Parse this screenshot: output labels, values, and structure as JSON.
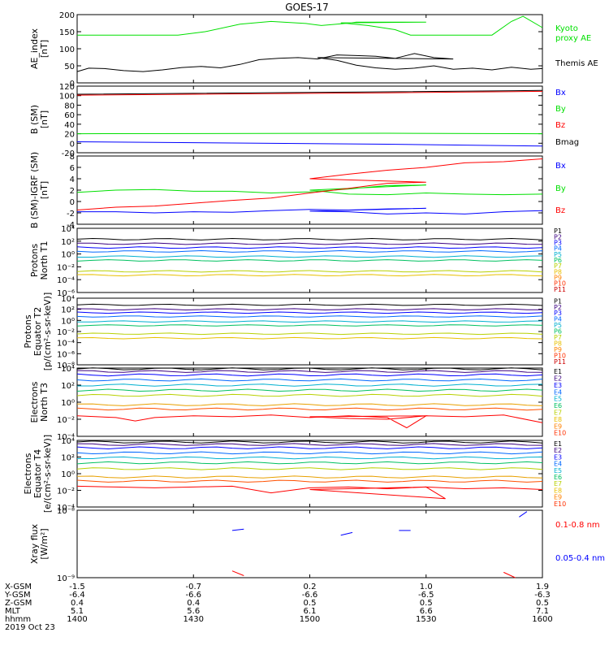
{
  "title": "GOES-17",
  "colors": {
    "green": "#00e000",
    "black": "#000000",
    "blue": "#0000ff",
    "red": "#ff0000",
    "axis": "#000000"
  },
  "chart_data": [
    {
      "type": "line",
      "panel": "ae",
      "ylabel": [
        "AE_index",
        "[nT]"
      ],
      "ylim": [
        0,
        200
      ],
      "yticks": [
        "0",
        "50",
        "100",
        "150",
        "200"
      ],
      "legend": [
        "Kyoto",
        "proxy AE",
        "Themis AE"
      ],
      "series": [
        {
          "name": "Kyoto proxy AE",
          "color": "#00e000",
          "x": [
            1400,
            1426,
            1433,
            1442,
            1450,
            1459,
            1463,
            1470,
            1472,
            1490,
            1508,
            1515,
            1522,
            1526,
            1538,
            1543,
            1547,
            1552,
            1555,
            1560
          ],
          "y": [
            140,
            140,
            150,
            172,
            180,
            174,
            168,
            175,
            178,
            178,
            176,
            168,
            156,
            140,
            140,
            140,
            140,
            180,
            195,
            162
          ]
        },
        {
          "name": "Themis AE",
          "color": "#000000",
          "x": [
            1400,
            1403,
            1407,
            1412,
            1417,
            1422,
            1427,
            1432,
            1437,
            1442,
            1447,
            1452,
            1457,
            1462,
            1467,
            1472,
            1477,
            1482,
            1487,
            1492,
            1497,
            1502,
            1507,
            1512,
            1517,
            1522,
            1527,
            1532,
            1537,
            1542,
            1547,
            1552,
            1557,
            1560
          ],
          "y": [
            33,
            43,
            42,
            36,
            33,
            38,
            45,
            48,
            44,
            54,
            68,
            72,
            74,
            70,
            82,
            80,
            78,
            72,
            86,
            74,
            70,
            74,
            66,
            52,
            44,
            40,
            43,
            50,
            40,
            43,
            38,
            46,
            40,
            42
          ]
        }
      ]
    },
    {
      "type": "line",
      "panel": "bsm",
      "ylabel": [
        "B (SM)",
        "[nT]"
      ],
      "ylim": [
        -20,
        120
      ],
      "yticks": [
        "-20",
        "0",
        "20",
        "40",
        "60",
        "80",
        "100",
        "120"
      ],
      "legend": [
        "Bx",
        "By",
        "Bz",
        "Bmag"
      ],
      "series": [
        {
          "name": "Bx",
          "color": "#0000ff",
          "x": [
            1400,
            1480,
            1560
          ],
          "y": [
            3,
            -2,
            -6
          ]
        },
        {
          "name": "By",
          "color": "#00e000",
          "x": [
            1400,
            1480,
            1560
          ],
          "y": [
            20,
            21,
            20
          ]
        },
        {
          "name": "Bz",
          "color": "#ff0000",
          "x": [
            1400,
            1480,
            1560
          ],
          "y": [
            101,
            106,
            109
          ]
        },
        {
          "name": "Bmag",
          "color": "#000000",
          "x": [
            1400,
            1480,
            1560
          ],
          "y": [
            103,
            108,
            111
          ]
        }
      ]
    },
    {
      "type": "line",
      "panel": "bdiff",
      "ylabel": [
        "B (SM)-IGRF (SM)",
        "[nT]"
      ],
      "ylim": [
        -4,
        8
      ],
      "yticks": [
        "-4",
        "-2",
        "0",
        "2",
        "4",
        "6",
        "8"
      ],
      "legend": [
        "Bx",
        "By",
        "Bz"
      ],
      "series": [
        {
          "name": "Bx",
          "color": "#0000ff",
          "x": [
            1400,
            1410,
            1420,
            1430,
            1440,
            1450,
            1460,
            1470,
            1480,
            1490,
            1500,
            1510,
            1520,
            1530,
            1540,
            1550,
            1560
          ],
          "y": [
            -1.8,
            -1.8,
            -2.0,
            -1.8,
            -1.9,
            -1.6,
            -1.4,
            -1.5,
            -1.3,
            -1.2,
            -1.7,
            -1.8,
            -2.2,
            -2.0,
            -2.2,
            -1.8,
            -1.6
          ]
        },
        {
          "name": "By",
          "color": "#00e000",
          "x": [
            1400,
            1410,
            1420,
            1430,
            1440,
            1450,
            1460,
            1470,
            1480,
            1490,
            1500,
            1510,
            1520,
            1530,
            1540,
            1550,
            1560
          ],
          "y": [
            1.6,
            2.0,
            2.1,
            1.8,
            1.8,
            1.5,
            1.7,
            2.2,
            2.8,
            2.9,
            2.0,
            1.3,
            1.2,
            1.5,
            1.3,
            1.2,
            1.3
          ]
        },
        {
          "name": "Bz",
          "color": "#ff0000",
          "x": [
            1400,
            1410,
            1420,
            1430,
            1440,
            1450,
            1460,
            1470,
            1480,
            1490,
            1500,
            1510,
            1520,
            1530,
            1540,
            1550,
            1560
          ],
          "y": [
            -1.5,
            -1.0,
            -0.8,
            -0.3,
            0.2,
            0.6,
            1.5,
            2.3,
            3.2,
            3.4,
            4.0,
            4.8,
            5.5,
            6.0,
            6.8,
            7.0,
            7.5
          ]
        }
      ]
    },
    {
      "type": "line",
      "panel": "pn",
      "log": true,
      "ylabel": [
        "Protons",
        "North T1"
      ],
      "ylim": [
        -6,
        4
      ],
      "yticks": [
        "10⁻⁶",
        "10⁻⁴",
        "10⁻²",
        "10⁰",
        "10²",
        "10⁴"
      ],
      "legend": [
        "P1",
        "P2",
        "P3",
        "P4",
        "P5",
        "P6",
        "P7",
        "P8",
        "P9",
        "P10",
        "P11"
      ],
      "series": [
        {
          "name": "P1",
          "color": "#000000",
          "y": [
            2.3
          ]
        },
        {
          "name": "P2",
          "color": "#3b0080",
          "y": [
            1.6
          ]
        },
        {
          "name": "P3",
          "color": "#0000ff",
          "y": [
            1.0
          ]
        },
        {
          "name": "P4",
          "color": "#0068ff",
          "y": [
            0.4
          ]
        },
        {
          "name": "P5",
          "color": "#00b0d0",
          "y": [
            -0.4
          ]
        },
        {
          "name": "P6",
          "color": "#00c060",
          "y": [
            -1.0
          ]
        },
        {
          "name": "P7",
          "color": "#b8d000",
          "y": [
            -2.7
          ]
        },
        {
          "name": "P8",
          "color": "#e8c000",
          "y": [
            -3.3
          ]
        }
      ]
    },
    {
      "type": "line",
      "panel": "pe",
      "log": true,
      "ylabel": [
        "Protons",
        "Equator T2",
        "[p/(cm²-s-sr-keV)]"
      ],
      "ylim": [
        -8,
        4
      ],
      "yticks": [
        "10⁻⁸",
        "10⁻⁶",
        "10⁻⁴",
        "10⁻²",
        "10⁰",
        "10²",
        "10⁴"
      ],
      "legend": [
        "P1",
        "P2",
        "P3",
        "P4",
        "P5",
        "P6",
        "P7",
        "P8",
        "P9",
        "P10",
        "P11"
      ],
      "series": [
        {
          "name": "P1",
          "color": "#000000",
          "y": [
            2.8
          ]
        },
        {
          "name": "P2",
          "color": "#3b0080",
          "y": [
            2.0
          ]
        },
        {
          "name": "P3",
          "color": "#0000ff",
          "y": [
            1.4
          ]
        },
        {
          "name": "P4",
          "color": "#0068ff",
          "y": [
            0.7
          ]
        },
        {
          "name": "P5",
          "color": "#00b0d0",
          "y": [
            -0.2
          ]
        },
        {
          "name": "P6",
          "color": "#00c060",
          "y": [
            -0.9
          ]
        },
        {
          "name": "P7",
          "color": "#b8d000",
          "y": [
            -2.4
          ]
        },
        {
          "name": "P8",
          "color": "#e8c000",
          "y": [
            -3.2
          ]
        }
      ]
    },
    {
      "type": "line",
      "panel": "en",
      "log": true,
      "ylabel": [
        "Electrons",
        "North T3"
      ],
      "ylim": [
        -4,
        4
      ],
      "yticks": [
        "10⁻⁴",
        "10⁻²",
        "10⁰",
        "10²",
        "10⁴"
      ],
      "legend": [
        "E1",
        "E2",
        "E3",
        "E4",
        "E5",
        "E6",
        "E7",
        "E8",
        "E9",
        "E10"
      ],
      "series": [
        {
          "name": "E1",
          "color": "#000000",
          "y": [
            3.9
          ]
        },
        {
          "name": "E2",
          "color": "#3b0080",
          "y": [
            3.6
          ]
        },
        {
          "name": "E3",
          "color": "#0000ff",
          "y": [
            3.2
          ]
        },
        {
          "name": "E4",
          "color": "#0068ff",
          "y": [
            2.6
          ]
        },
        {
          "name": "E5",
          "color": "#00b0d0",
          "y": [
            2.0
          ]
        },
        {
          "name": "E6",
          "color": "#00c060",
          "y": [
            1.4
          ]
        },
        {
          "name": "E7",
          "color": "#b8d000",
          "y": [
            0.8
          ]
        },
        {
          "name": "E8",
          "color": "#e8a000",
          "y": [
            -0.3
          ]
        },
        {
          "name": "E9",
          "color": "#ff5000",
          "y": [
            -0.8
          ]
        },
        {
          "name": "E10",
          "color": "#ff0000",
          "x": [
            1400,
            1410,
            1415,
            1420,
            1430,
            1440,
            1450,
            1460,
            1470,
            1480,
            1485,
            1490,
            1500,
            1510,
            1520,
            1530,
            1540,
            1550,
            1560
          ],
          "y": [
            -1.6,
            -1.8,
            -2.2,
            -1.8,
            -1.6,
            -1.7,
            -1.5,
            -1.8,
            -1.6,
            -1.8,
            -3.0,
            -1.6,
            -1.7,
            -1.9,
            -2.0,
            -1.6,
            -1.7,
            -1.5,
            -2.4
          ]
        }
      ]
    },
    {
      "type": "line",
      "panel": "ee",
      "log": true,
      "ylabel": [
        "Electrons",
        "Equator T4",
        "[e/(cm²-s-sr-keV)]"
      ],
      "ylim": [
        -4,
        4
      ],
      "yticks": [
        "10⁻⁴",
        "10⁻²",
        "10⁰",
        "10²",
        "10⁴"
      ],
      "legend": [
        "E1",
        "E2",
        "E3",
        "E4",
        "E5",
        "E6",
        "E7",
        "E8",
        "E9",
        "E10"
      ],
      "series": [
        {
          "name": "E1",
          "color": "#000000",
          "y": [
            3.8
          ]
        },
        {
          "name": "E2",
          "color": "#3b0080",
          "y": [
            3.5
          ]
        },
        {
          "name": "E3",
          "color": "#0000ff",
          "y": [
            3.1
          ]
        },
        {
          "name": "E4",
          "color": "#0068ff",
          "y": [
            2.5
          ]
        },
        {
          "name": "E5",
          "color": "#00b0d0",
          "y": [
            1.9
          ]
        },
        {
          "name": "E6",
          "color": "#00c060",
          "y": [
            1.3
          ]
        },
        {
          "name": "E7",
          "color": "#b8d000",
          "y": [
            0.6
          ]
        },
        {
          "name": "E8",
          "color": "#e8a000",
          "y": [
            -0.4
          ]
        },
        {
          "name": "E9",
          "color": "#ff5000",
          "y": [
            -0.9
          ]
        },
        {
          "name": "E10",
          "color": "#ff0000",
          "x": [
            1400,
            1410,
            1420,
            1430,
            1440,
            1450,
            1460,
            1470,
            1480,
            1490,
            1495,
            1500,
            1510,
            1520,
            1530,
            1540,
            1550,
            1560
          ],
          "y": [
            -1.5,
            -1.6,
            -1.7,
            -1.6,
            -1.5,
            -2.3,
            -1.7,
            -1.6,
            -1.8,
            -1.6,
            -3.0,
            -1.9,
            -1.8,
            -1.7,
            -1.6,
            -1.8,
            -1.7,
            -1.9
          ]
        }
      ]
    },
    {
      "type": "scatter",
      "panel": "xray",
      "log": true,
      "ylabel": [
        "Xray flux",
        "[W/m²]"
      ],
      "ylim": [
        -9,
        -8
      ],
      "yticks": [
        "10⁻⁹",
        "10⁻⁸"
      ],
      "legend": [
        "0.1-0.8 nm",
        "0.05-0.4 nm"
      ],
      "series": [
        {
          "name": "0.1-0.8 nm",
          "color": "#ff0000",
          "segments": [
            [
              [
                1440,
                -8.9
              ],
              [
                1443,
                -8.97
              ]
            ],
            [
              [
                1550,
                -8.92
              ],
              [
                1553,
                -9.0
              ]
            ]
          ]
        },
        {
          "name": "0.05-0.4 nm",
          "color": "#0000ff",
          "segments": [
            [
              [
                1440,
                -8.3
              ],
              [
                1443,
                -8.28
              ]
            ],
            [
              [
                1483,
                -8.3
              ],
              [
                1486,
                -8.3
              ]
            ],
            [
              [
                1508,
                -8.37
              ],
              [
                1511,
                -8.33
              ]
            ],
            [
              [
                1554,
                -8.1
              ],
              [
                1556,
                -8.02
              ]
            ]
          ]
        }
      ]
    }
  ],
  "xaxis": {
    "labels": [
      {
        "name": "X-GSM",
        "values": [
          "-1.5",
          "-0.7",
          "0.2",
          "1.0",
          "1.9"
        ]
      },
      {
        "name": "Y-GSM",
        "values": [
          "-6.4",
          "-6.6",
          "-6.6",
          "-6.5",
          "-6.3"
        ]
      },
      {
        "name": "Z-GSM",
        "values": [
          "0.4",
          "0.4",
          "0.5",
          "0.5",
          "0.5"
        ]
      },
      {
        "name": "MLT",
        "values": [
          "5.1",
          "5.6",
          "6.1",
          "6.6",
          "7.1"
        ]
      },
      {
        "name": "hhmm",
        "values": [
          "1400",
          "1430",
          "1500",
          "1530",
          "1600"
        ]
      }
    ],
    "date": "2019 Oct 23",
    "tick_times": [
      1400,
      1430,
      1500,
      1530,
      1600
    ]
  }
}
